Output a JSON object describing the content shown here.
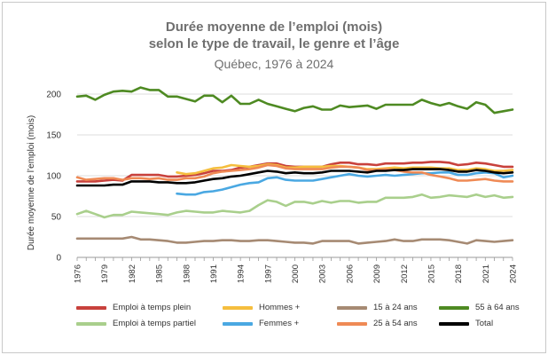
{
  "title_line1": "Durée moyenne de l’emploi (mois)",
  "title_line2": "selon le type de travail, le genre et l’âge",
  "subtitle": "Québec, 1976 à 2024",
  "chart_data": {
    "type": "line",
    "ylabel": "Durée moyenne de l’emploi (mois)",
    "xlabel": "",
    "ylim": [
      0,
      200
    ],
    "yticks": [
      0,
      50,
      100,
      150,
      200
    ],
    "xlim": [
      1976,
      2024
    ],
    "xticks": [
      1976,
      1979,
      1982,
      1985,
      1988,
      1991,
      1994,
      1997,
      2000,
      2003,
      2006,
      2009,
      2012,
      2015,
      2018,
      2021,
      2024
    ],
    "grid": "horizontal",
    "legend_position": "bottom",
    "series": [
      {
        "name": "Emploi à temps plein",
        "color": "#c8413c",
        "x": [
          1976,
          1977,
          1978,
          1979,
          1980,
          1981,
          1982,
          1983,
          1984,
          1985,
          1986,
          1987,
          1988,
          1989,
          1990,
          1991,
          1992,
          1993,
          1994,
          1995,
          1996,
          1997,
          1998,
          1999,
          2000,
          2001,
          2002,
          2003,
          2004,
          2005,
          2006,
          2007,
          2008,
          2009,
          2010,
          2011,
          2012,
          2013,
          2014,
          2015,
          2016,
          2017,
          2018,
          2019,
          2020,
          2021,
          2022,
          2023,
          2024
        ],
        "values": [
          93,
          93,
          93,
          94,
          95,
          94,
          101,
          101,
          101,
          101,
          99,
          99,
          100,
          101,
          103,
          106,
          106,
          107,
          110,
          111,
          113,
          115,
          115,
          112,
          111,
          111,
          111,
          111,
          114,
          116,
          116,
          114,
          114,
          113,
          115,
          115,
          115,
          116,
          116,
          117,
          117,
          116,
          113,
          114,
          116,
          115,
          113,
          111,
          111
        ]
      },
      {
        "name": "Emploi à temps partiel",
        "color": "#a9cf8c",
        "x": [
          1976,
          1977,
          1978,
          1979,
          1980,
          1981,
          1982,
          1983,
          1984,
          1985,
          1986,
          1987,
          1988,
          1989,
          1990,
          1991,
          1992,
          1993,
          1994,
          1995,
          1996,
          1997,
          1998,
          1999,
          2000,
          2001,
          2002,
          2003,
          2004,
          2005,
          2006,
          2007,
          2008,
          2009,
          2010,
          2011,
          2012,
          2013,
          2014,
          2015,
          2016,
          2017,
          2018,
          2019,
          2020,
          2021,
          2022,
          2023,
          2024
        ],
        "values": [
          53,
          57,
          53,
          49,
          52,
          52,
          56,
          55,
          54,
          53,
          52,
          55,
          57,
          56,
          55,
          55,
          57,
          56,
          55,
          57,
          64,
          70,
          68,
          63,
          68,
          68,
          66,
          69,
          67,
          69,
          69,
          67,
          68,
          68,
          73,
          73,
          73,
          74,
          77,
          73,
          74,
          76,
          75,
          74,
          77,
          74,
          76,
          73,
          74
        ]
      },
      {
        "name": "Hommes +",
        "color": "#f5be3e",
        "x": [
          1987,
          1988,
          1989,
          1990,
          1991,
          1992,
          1993,
          1994,
          1995,
          1996,
          1997,
          1998,
          1999,
          2000,
          2001,
          2002,
          2003,
          2004,
          2005,
          2006,
          2007,
          2008,
          2009,
          2010,
          2011,
          2012,
          2013,
          2014,
          2015,
          2016,
          2017,
          2018,
          2019,
          2020,
          2021,
          2022,
          2023,
          2024
        ],
        "values": [
          104,
          102,
          103,
          106,
          109,
          110,
          113,
          112,
          111,
          112,
          114,
          113,
          110,
          110,
          111,
          111,
          111,
          112,
          112,
          111,
          110,
          108,
          108,
          109,
          110,
          109,
          110,
          110,
          110,
          109,
          109,
          107,
          107,
          109,
          108,
          106,
          106,
          107
        ]
      },
      {
        "name": "Femmes +",
        "color": "#4aa8e2",
        "x": [
          1987,
          1988,
          1989,
          1990,
          1991,
          1992,
          1993,
          1994,
          1995,
          1996,
          1997,
          1998,
          1999,
          2000,
          2001,
          2002,
          2003,
          2004,
          2005,
          2006,
          2007,
          2008,
          2009,
          2010,
          2011,
          2012,
          2013,
          2014,
          2015,
          2016,
          2017,
          2018,
          2019,
          2020,
          2021,
          2022,
          2023,
          2024
        ],
        "values": [
          78,
          77,
          77,
          80,
          81,
          83,
          86,
          89,
          91,
          92,
          97,
          98,
          95,
          94,
          94,
          94,
          96,
          98,
          100,
          102,
          100,
          99,
          100,
          101,
          100,
          101,
          102,
          103,
          103,
          104,
          104,
          101,
          101,
          103,
          104,
          103,
          98,
          100
        ]
      },
      {
        "name": "15 à 24 ans",
        "color": "#a68a73",
        "x": [
          1976,
          1977,
          1978,
          1979,
          1980,
          1981,
          1982,
          1983,
          1984,
          1985,
          1986,
          1987,
          1988,
          1989,
          1990,
          1991,
          1992,
          1993,
          1994,
          1995,
          1996,
          1997,
          1998,
          1999,
          2000,
          2001,
          2002,
          2003,
          2004,
          2005,
          2006,
          2007,
          2008,
          2009,
          2010,
          2011,
          2012,
          2013,
          2014,
          2015,
          2016,
          2017,
          2018,
          2019,
          2020,
          2021,
          2022,
          2023,
          2024
        ],
        "values": [
          23,
          23,
          23,
          23,
          23,
          23,
          25,
          22,
          22,
          21,
          20,
          18,
          18,
          19,
          20,
          20,
          21,
          21,
          20,
          20,
          21,
          21,
          20,
          19,
          18,
          18,
          17,
          20,
          20,
          20,
          20,
          17,
          18,
          19,
          20,
          22,
          20,
          20,
          22,
          22,
          22,
          21,
          19,
          17,
          21,
          20,
          19,
          20,
          21
        ]
      },
      {
        "name": "25 à 54 ans",
        "color": "#ef8a55",
        "x": [
          1976,
          1977,
          1978,
          1979,
          1980,
          1981,
          1982,
          1983,
          1984,
          1985,
          1986,
          1987,
          1988,
          1989,
          1990,
          1991,
          1992,
          1993,
          1994,
          1995,
          1996,
          1997,
          1998,
          1999,
          2000,
          2001,
          2002,
          2003,
          2004,
          2005,
          2006,
          2007,
          2008,
          2009,
          2010,
          2011,
          2012,
          2013,
          2014,
          2015,
          2016,
          2017,
          2018,
          2019,
          2020,
          2021,
          2022,
          2023,
          2024
        ],
        "values": [
          98,
          95,
          96,
          97,
          97,
          95,
          97,
          97,
          96,
          97,
          95,
          95,
          97,
          97,
          99,
          103,
          105,
          106,
          107,
          108,
          110,
          113,
          112,
          109,
          108,
          108,
          108,
          108,
          110,
          111,
          111,
          110,
          107,
          107,
          108,
          107,
          105,
          104,
          104,
          101,
          99,
          97,
          94,
          94,
          95,
          96,
          94,
          93,
          93
        ]
      },
      {
        "name": "55 à 64 ans",
        "color": "#4e8a22",
        "x": [
          1976,
          1977,
          1978,
          1979,
          1980,
          1981,
          1982,
          1983,
          1984,
          1985,
          1986,
          1987,
          1988,
          1989,
          1990,
          1991,
          1992,
          1993,
          1994,
          1995,
          1996,
          1997,
          1998,
          1999,
          2000,
          2001,
          2002,
          2003,
          2004,
          2005,
          2006,
          2007,
          2008,
          2009,
          2010,
          2011,
          2012,
          2013,
          2014,
          2015,
          2016,
          2017,
          2018,
          2019,
          2020,
          2021,
          2022,
          2023,
          2024
        ],
        "values": [
          197,
          198,
          193,
          199,
          203,
          204,
          203,
          208,
          205,
          205,
          197,
          197,
          194,
          191,
          198,
          198,
          190,
          198,
          188,
          188,
          193,
          188,
          185,
          182,
          179,
          183,
          185,
          181,
          181,
          186,
          184,
          185,
          186,
          182,
          187,
          187,
          187,
          187,
          193,
          189,
          186,
          189,
          185,
          182,
          190,
          187,
          177,
          179,
          181
        ]
      },
      {
        "name": "Total",
        "color": "#000000",
        "x": [
          1976,
          1977,
          1978,
          1979,
          1980,
          1981,
          1982,
          1983,
          1984,
          1985,
          1986,
          1987,
          1988,
          1989,
          1990,
          1991,
          1992,
          1993,
          1994,
          1995,
          1996,
          1997,
          1998,
          1999,
          2000,
          2001,
          2002,
          2003,
          2004,
          2005,
          2006,
          2007,
          2008,
          2009,
          2010,
          2011,
          2012,
          2013,
          2014,
          2015,
          2016,
          2017,
          2018,
          2019,
          2020,
          2021,
          2022,
          2023,
          2024
        ],
        "values": [
          88,
          88,
          88,
          88,
          89,
          89,
          93,
          93,
          93,
          92,
          92,
          91,
          91,
          92,
          94,
          96,
          97,
          99,
          100,
          102,
          104,
          106,
          105,
          103,
          104,
          103,
          103,
          104,
          106,
          106,
          106,
          105,
          104,
          106,
          106,
          107,
          107,
          108,
          108,
          108,
          108,
          107,
          105,
          105,
          107,
          106,
          104,
          103,
          104
        ]
      }
    ]
  }
}
